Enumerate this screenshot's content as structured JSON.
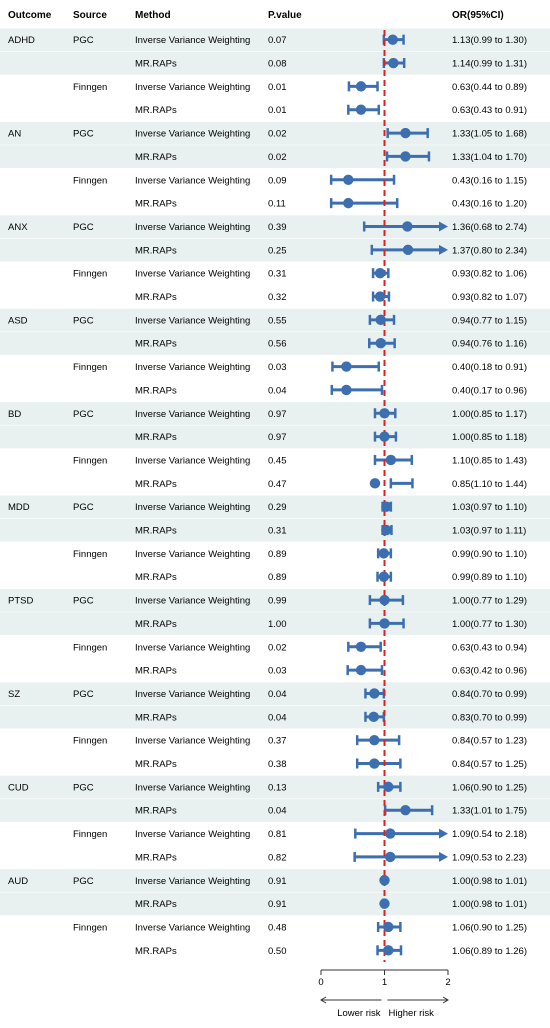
{
  "chart_data": {
    "type": "forest",
    "title": "",
    "columns": {
      "outcome": "Outcome",
      "source": "Source",
      "method": "Method",
      "pvalue": "P.value",
      "or": "OR(95%CI)"
    },
    "reference_line": 1,
    "xlim": [
      0,
      2
    ],
    "xticks": [
      "0",
      "1",
      "2"
    ],
    "direction_labels": {
      "lower": "Lower risk",
      "higher": "Higher risk"
    },
    "colors": {
      "band": "#e9f1f0",
      "point": "#3d6fb0",
      "refline": "#e02020",
      "axis": "#333333"
    },
    "rows": [
      {
        "outcome": "ADHD",
        "source": "PGC",
        "method": "Inverse Variance Weighting",
        "pvalue": "0.07",
        "or_text": "1.13(0.99 to 1.30)",
        "or": 1.13,
        "lo": 0.99,
        "hi": 1.3
      },
      {
        "outcome": "",
        "source": "",
        "method": "MR.RAPs",
        "pvalue": "0.08",
        "or_text": "1.14(0.99 to 1.31)",
        "or": 1.14,
        "lo": 0.99,
        "hi": 1.31
      },
      {
        "outcome": "",
        "source": "Finngen",
        "method": "Inverse Variance Weighting",
        "pvalue": "0.01",
        "or_text": "0.63(0.44 to 0.89)",
        "or": 0.63,
        "lo": 0.44,
        "hi": 0.89
      },
      {
        "outcome": "",
        "source": "",
        "method": "MR.RAPs",
        "pvalue": "0.01",
        "or_text": "0.63(0.43 to 0.91)",
        "or": 0.63,
        "lo": 0.43,
        "hi": 0.91
      },
      {
        "outcome": "AN",
        "source": "PGC",
        "method": "Inverse Variance Weighting",
        "pvalue": "0.02",
        "or_text": "1.33(1.05 to 1.68)",
        "or": 1.33,
        "lo": 1.05,
        "hi": 1.68
      },
      {
        "outcome": "",
        "source": "",
        "method": "MR.RAPs",
        "pvalue": "0.02",
        "or_text": "1.33(1.04 to 1.70)",
        "or": 1.33,
        "lo": 1.04,
        "hi": 1.7
      },
      {
        "outcome": "",
        "source": "Finngen",
        "method": "Inverse Variance Weighting",
        "pvalue": "0.09",
        "or_text": "0.43(0.16 to 1.15)",
        "or": 0.43,
        "lo": 0.16,
        "hi": 1.15
      },
      {
        "outcome": "",
        "source": "",
        "method": "MR.RAPs",
        "pvalue": "0.11",
        "or_text": "0.43(0.16 to 1.20)",
        "or": 0.43,
        "lo": 0.16,
        "hi": 1.2
      },
      {
        "outcome": "ANX",
        "source": "PGC",
        "method": "Inverse Variance Weighting",
        "pvalue": "0.39",
        "or_text": "1.36(0.68 to 2.74)",
        "or": 1.36,
        "lo": 0.68,
        "hi": 2.74
      },
      {
        "outcome": "",
        "source": "",
        "method": "MR.RAPs",
        "pvalue": "0.25",
        "or_text": "1.37(0.80 to 2.34)",
        "or": 1.37,
        "lo": 0.8,
        "hi": 2.34
      },
      {
        "outcome": "",
        "source": "Finngen",
        "method": "Inverse Variance Weighting",
        "pvalue": "0.31",
        "or_text": "0.93(0.82 to 1.06)",
        "or": 0.93,
        "lo": 0.82,
        "hi": 1.06
      },
      {
        "outcome": "",
        "source": "",
        "method": "MR.RAPs",
        "pvalue": "0.32",
        "or_text": "0.93(0.82 to 1.07)",
        "or": 0.93,
        "lo": 0.82,
        "hi": 1.07
      },
      {
        "outcome": "ASD",
        "source": "PGC",
        "method": "Inverse Variance Weighting",
        "pvalue": "0.55",
        "or_text": "0.94(0.77 to 1.15)",
        "or": 0.94,
        "lo": 0.77,
        "hi": 1.15
      },
      {
        "outcome": "",
        "source": "",
        "method": "MR.RAPs",
        "pvalue": "0.56",
        "or_text": "0.94(0.76 to 1.16)",
        "or": 0.94,
        "lo": 0.76,
        "hi": 1.16
      },
      {
        "outcome": "",
        "source": "Finngen",
        "method": "Inverse Variance Weighting",
        "pvalue": "0.03",
        "or_text": "0.40(0.18 to 0.91)",
        "or": 0.4,
        "lo": 0.18,
        "hi": 0.91
      },
      {
        "outcome": "",
        "source": "",
        "method": "MR.RAPs",
        "pvalue": "0.04",
        "or_text": "0.40(0.17 to 0.96)",
        "or": 0.4,
        "lo": 0.17,
        "hi": 0.96
      },
      {
        "outcome": "BD",
        "source": "PGC",
        "method": "Inverse Variance Weighting",
        "pvalue": "0.97",
        "or_text": "1.00(0.85 to 1.17)",
        "or": 1.0,
        "lo": 0.85,
        "hi": 1.17
      },
      {
        "outcome": "",
        "source": "",
        "method": "MR.RAPs",
        "pvalue": "0.97",
        "or_text": "1.00(0.85 to 1.18)",
        "or": 1.0,
        "lo": 0.85,
        "hi": 1.18
      },
      {
        "outcome": "",
        "source": "Finngen",
        "method": "Inverse Variance Weighting",
        "pvalue": "0.45",
        "or_text": "1.10(0.85 to 1.43)",
        "or": 1.1,
        "lo": 0.85,
        "hi": 1.43
      },
      {
        "outcome": "",
        "source": "",
        "method": "MR.RAPs",
        "pvalue": "0.47",
        "or_text": "0.85(1.10 to 1.44)",
        "or": 0.85,
        "lo": 1.1,
        "hi": 1.44
      },
      {
        "outcome": "MDD",
        "source": "PGC",
        "method": "Inverse Variance Weighting",
        "pvalue": "0.29",
        "or_text": "1.03(0.97 to 1.10)",
        "or": 1.03,
        "lo": 0.97,
        "hi": 1.1
      },
      {
        "outcome": "",
        "source": "",
        "method": "MR.RAPs",
        "pvalue": "0.31",
        "or_text": "1.03(0.97 to 1.11)",
        "or": 1.03,
        "lo": 0.97,
        "hi": 1.11
      },
      {
        "outcome": "",
        "source": "Finngen",
        "method": "Inverse Variance Weighting",
        "pvalue": "0.89",
        "or_text": "0.99(0.90 to 1.10)",
        "or": 0.99,
        "lo": 0.9,
        "hi": 1.1
      },
      {
        "outcome": "",
        "source": "",
        "method": "MR.RAPs",
        "pvalue": "0.89",
        "or_text": "0.99(0.89 to 1.10)",
        "or": 0.99,
        "lo": 0.89,
        "hi": 1.1
      },
      {
        "outcome": "PTSD",
        "source": "PGC",
        "method": "Inverse Variance Weighting",
        "pvalue": "0.99",
        "or_text": "1.00(0.77 to 1.29)",
        "or": 1.0,
        "lo": 0.77,
        "hi": 1.29
      },
      {
        "outcome": "",
        "source": "",
        "method": "MR.RAPs",
        "pvalue": "1.00",
        "or_text": "1.00(0.77 to 1.30)",
        "or": 1.0,
        "lo": 0.77,
        "hi": 1.3
      },
      {
        "outcome": "",
        "source": "Finngen",
        "method": "Inverse Variance Weighting",
        "pvalue": "0.02",
        "or_text": "0.63(0.43 to 0.94)",
        "or": 0.63,
        "lo": 0.43,
        "hi": 0.94
      },
      {
        "outcome": "",
        "source": "",
        "method": "MR.RAPs",
        "pvalue": "0.03",
        "or_text": "0.63(0.42 to 0.96)",
        "or": 0.63,
        "lo": 0.42,
        "hi": 0.96
      },
      {
        "outcome": "SZ",
        "source": "PGC",
        "method": "Inverse Variance Weighting",
        "pvalue": "0.04",
        "or_text": "0.84(0.70 to 0.99)",
        "or": 0.84,
        "lo": 0.7,
        "hi": 0.99
      },
      {
        "outcome": "",
        "source": "",
        "method": "MR.RAPs",
        "pvalue": "0.04",
        "or_text": "0.83(0.70 to 0.99)",
        "or": 0.83,
        "lo": 0.7,
        "hi": 0.99
      },
      {
        "outcome": "",
        "source": "Finngen",
        "method": "Inverse Variance Weighting",
        "pvalue": "0.37",
        "or_text": "0.84(0.57 to 1.23)",
        "or": 0.84,
        "lo": 0.57,
        "hi": 1.23
      },
      {
        "outcome": "",
        "source": "",
        "method": "MR.RAPs",
        "pvalue": "0.38",
        "or_text": "0.84(0.57 to 1.25)",
        "or": 0.84,
        "lo": 0.57,
        "hi": 1.25
      },
      {
        "outcome": "CUD",
        "source": "PGC",
        "method": "Inverse Variance Weighting",
        "pvalue": "0.13",
        "or_text": "1.06(0.90 to 1.25)",
        "or": 1.06,
        "lo": 0.9,
        "hi": 1.25
      },
      {
        "outcome": "",
        "source": "",
        "method": "MR.RAPs",
        "pvalue": "0.04",
        "or_text": "1.33(1.01 to 1.75)",
        "or": 1.33,
        "lo": 1.01,
        "hi": 1.75
      },
      {
        "outcome": "",
        "source": "Finngen",
        "method": "Inverse Variance Weighting",
        "pvalue": "0.81",
        "or_text": "1.09(0.54 to 2.18)",
        "or": 1.09,
        "lo": 0.54,
        "hi": 2.18
      },
      {
        "outcome": "",
        "source": "",
        "method": "MR.RAPs",
        "pvalue": "0.82",
        "or_text": "1.09(0.53 to 2.23)",
        "or": 1.09,
        "lo": 0.53,
        "hi": 2.23
      },
      {
        "outcome": "AUD",
        "source": "PGC",
        "method": "Inverse Variance Weighting",
        "pvalue": "0.91",
        "or_text": "1.00(0.98 to 1.01)",
        "or": 1.0,
        "lo": 0.98,
        "hi": 1.01
      },
      {
        "outcome": "",
        "source": "",
        "method": "MR.RAPs",
        "pvalue": "0.91",
        "or_text": "1.00(0.98 to 1.01)",
        "or": 1.0,
        "lo": 0.98,
        "hi": 1.01
      },
      {
        "outcome": "",
        "source": "Finngen",
        "method": "Inverse Variance Weighting",
        "pvalue": "0.48",
        "or_text": "1.06(0.90 to 1.25)",
        "or": 1.06,
        "lo": 0.9,
        "hi": 1.25
      },
      {
        "outcome": "",
        "source": "",
        "method": "MR.RAPs",
        "pvalue": "0.50",
        "or_text": "1.06(0.89 to 1.26)",
        "or": 1.06,
        "lo": 0.89,
        "hi": 1.26
      }
    ]
  }
}
